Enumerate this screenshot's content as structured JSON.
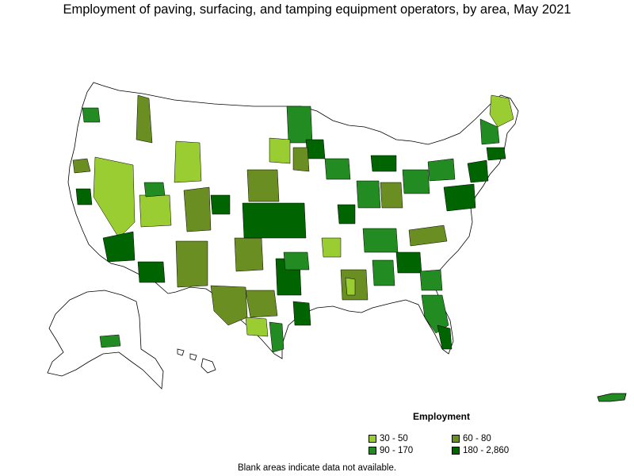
{
  "title": "Employment of paving, surfacing, and tamping equipment operators, by area, May 2021",
  "legend": {
    "title": "Employment",
    "items": [
      {
        "label": "30 - 50",
        "color": "#9acd32"
      },
      {
        "label": "60 - 80",
        "color": "#6b8e23"
      },
      {
        "label": "90 - 170",
        "color": "#228b22"
      },
      {
        "label": "180 - 2,860",
        "color": "#006400"
      }
    ]
  },
  "footnote": "Blank areas indicate data not available.",
  "colors": {
    "border": "#000000",
    "blank": "#ffffff"
  }
}
